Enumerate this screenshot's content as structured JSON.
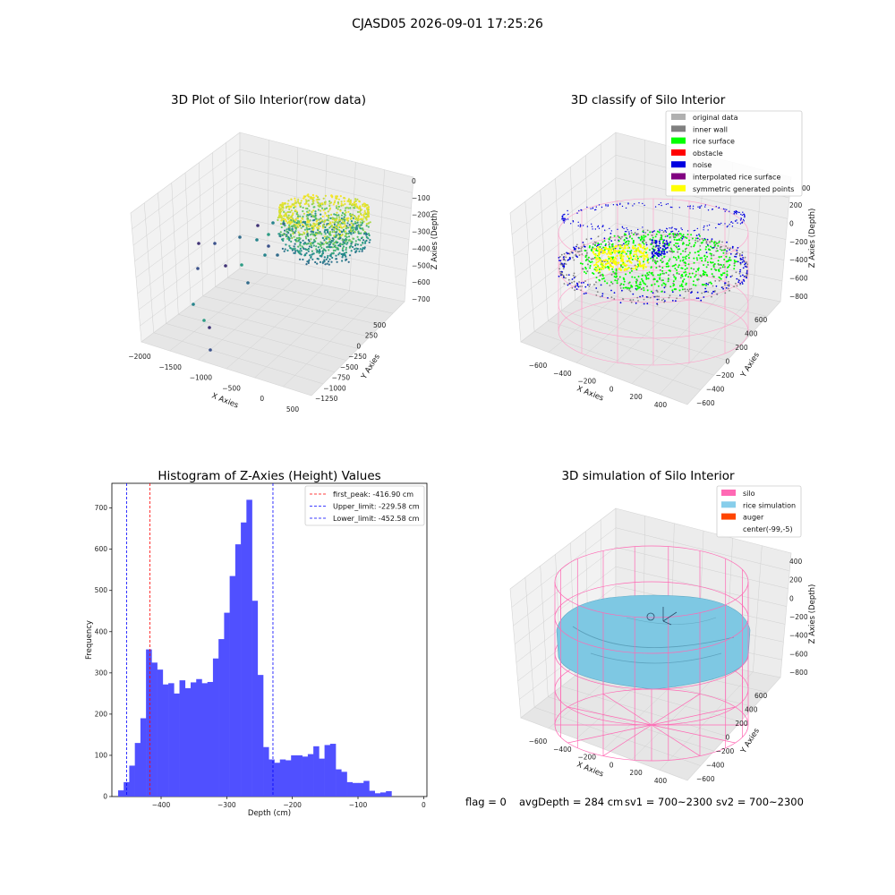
{
  "suptitle": "CJASD05 2026-09-01 17:25:26",
  "footer": {
    "flag": "flag = 0",
    "avg_depth": "avgDepth = 284 cm",
    "sv1": "sv1 = 700~2300",
    "sv2": "sv2 = 700~2300"
  },
  "colors": {
    "histogram_bars": "#5050ff",
    "peak_line": "#ff0000",
    "limit_lines": "#0000ff",
    "original_data": "#b0b0b0",
    "inner_wall": "#808080",
    "rice_surface": "#00ff00",
    "obstacle": "#ff0000",
    "noise": "#0000e0",
    "interpolated_rice_surface": "#800080",
    "symmetric_generated_points": "#ffff00",
    "silo": "#ff69b4",
    "rice_simulation": "#87ceeb",
    "auger": "#ff4500"
  },
  "chart_data": [
    {
      "type": "scatter3d",
      "title": "3D Plot of Silo Interior(row data)",
      "xlabel": "X Axies",
      "ylabel": "Y Axies",
      "zlabel": "Z Axies (Depth)",
      "x_ticks": [
        "−2000",
        "−1500",
        "−1000",
        "−500",
        "0",
        "500"
      ],
      "y_ticks": [
        "−1250",
        "−1000",
        "−750",
        "−500",
        "−250",
        "0",
        "250",
        "500"
      ],
      "z_ticks": [
        "0",
        "−100",
        "−200",
        "−300",
        "−400",
        "−500",
        "−600",
        "−700"
      ],
      "xlim": [
        -2100,
        600
      ],
      "ylim": [
        -1350,
        600
      ],
      "zlim": [
        -750,
        0
      ],
      "colormap": "viridis"
    },
    {
      "type": "scatter3d",
      "title": "3D classify of Silo Interior",
      "xlabel": "X Axies",
      "ylabel": "Y Axies",
      "zlabel": "Z Axies (Depth)",
      "x_ticks": [
        "−600",
        "−400",
        "−200",
        "0",
        "200",
        "400"
      ],
      "y_ticks": [
        "−600",
        "−400",
        "−200",
        "0",
        "200",
        "400",
        "600"
      ],
      "z_ticks": [
        "200",
        "0",
        "−200",
        "−400",
        "−600",
        "−800"
      ],
      "z_ticks_partial": "00",
      "xlim": [
        -700,
        500
      ],
      "ylim": [
        -700,
        700
      ],
      "zlim": [
        -900,
        400
      ],
      "legend": [
        "original data",
        "inner wall",
        "rice surface",
        "obstacle",
        "noise",
        "interpolated rice surface",
        "symmetric generated points"
      ],
      "legend_loc": "upper right"
    },
    {
      "type": "bar",
      "title": "Histogram of Z-Axies (Height) Values",
      "xlabel": "Depth (cm)",
      "ylabel": "Frequency",
      "xlim": [
        -475,
        5
      ],
      "ylim": [
        0,
        760
      ],
      "x_ticks": [
        -400,
        -300,
        -200,
        -100,
        0
      ],
      "x_tick_labels": [
        "−400",
        "−300",
        "−200",
        "−100",
        "0"
      ],
      "y_ticks": [
        0,
        100,
        200,
        300,
        400,
        500,
        600,
        700
      ],
      "bin_start": -465.5,
      "bin_width": 8.5,
      "values": [
        15,
        35,
        75,
        130,
        190,
        357,
        325,
        308,
        272,
        275,
        250,
        282,
        263,
        277,
        285,
        275,
        278,
        335,
        382,
        446,
        535,
        612,
        665,
        720,
        475,
        295,
        120,
        90,
        82,
        90,
        88,
        100,
        100,
        97,
        103,
        122,
        92,
        125,
        128,
        66,
        60,
        35,
        33,
        33,
        38,
        14,
        8,
        10,
        13
      ],
      "vlines": [
        {
          "x": -416.9,
          "label": "first_peak: -416.90 cm",
          "color": "#ff0000"
        },
        {
          "x": -229.58,
          "label": "Upper_limit: -229.58 cm",
          "color": "#0000ff"
        },
        {
          "x": -452.58,
          "label": "Lower_limit: -452.58 cm",
          "color": "#0000ff"
        }
      ],
      "legend_loc": "upper right"
    },
    {
      "type": "surface3d",
      "title": "3D simulation of Silo Interior",
      "xlabel": "X Axies",
      "ylabel": "Y Axies",
      "zlabel": "Z Axies (Depth)",
      "x_ticks": [
        "−600",
        "−400",
        "−200",
        "0",
        "200",
        "400"
      ],
      "y_ticks": [
        "−600",
        "−400",
        "−200",
        "0",
        "200",
        "400",
        "600"
      ],
      "z_ticks": [
        "400",
        "200",
        "0",
        "−200",
        "−400",
        "−600",
        "−800"
      ],
      "xlim": [
        -700,
        500
      ],
      "ylim": [
        -700,
        700
      ],
      "zlim": [
        -900,
        400
      ],
      "legend": [
        "silo",
        "rice simulation",
        "auger",
        "center(-99,-5)"
      ],
      "legend_loc": "upper right"
    }
  ]
}
